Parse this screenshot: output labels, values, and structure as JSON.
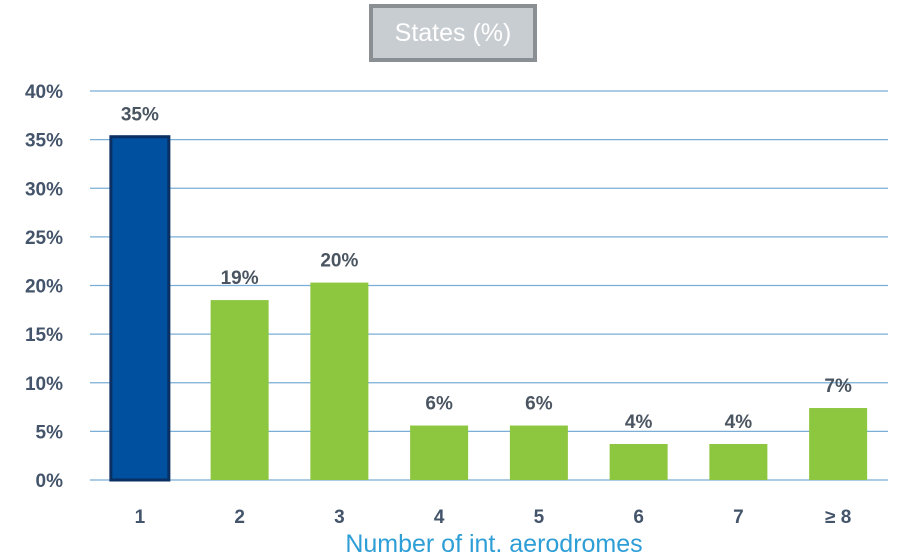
{
  "chart_data": {
    "type": "bar",
    "title": "",
    "legend": {
      "label": "States (%)",
      "placement": "top-center"
    },
    "xlabel": "Number of int. aerodromes",
    "ylabel": "",
    "categories": [
      "1",
      "2",
      "3",
      "4",
      "5",
      "6",
      "7",
      "≥ 8"
    ],
    "values": [
      35.3,
      18.5,
      20.3,
      5.6,
      5.6,
      3.7,
      3.7,
      7.4
    ],
    "data_labels": [
      "35%",
      "19%",
      "20%",
      "6%",
      "6%",
      "4%",
      "4%",
      "7%"
    ],
    "highlight_index": 0,
    "colors": {
      "highlight": "#0050a0",
      "highlight_border": "#0a2f63",
      "bar": "#8dc63f"
    },
    "ylim": [
      0,
      40
    ],
    "yticks": [
      0,
      5,
      10,
      15,
      20,
      25,
      30,
      35,
      40
    ],
    "ytick_labels": [
      "0%",
      "5%",
      "10%",
      "15%",
      "20%",
      "25%",
      "30%",
      "35%",
      "40%"
    ],
    "grid": true
  }
}
